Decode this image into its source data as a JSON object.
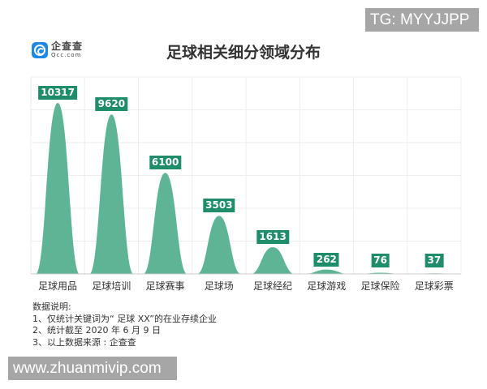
{
  "watermarks": {
    "top": "TG: MYYJJPP",
    "bottom": "www.zhuanmivip.com"
  },
  "logo": {
    "name_cn": "企查查",
    "name_en": "Qcc.com"
  },
  "header": {
    "title": "足球相关细分领域分布"
  },
  "colors": {
    "bump": "#5db595",
    "label_bg": "#1f8c6b",
    "grid": "#eeeeee",
    "baseline": "#cccccc"
  },
  "chart_data": {
    "type": "bar",
    "title": "足球相关细分领域分布",
    "xlabel": "",
    "ylabel": "",
    "categories": [
      "足球用品",
      "足球培训",
      "足球赛事",
      "足球场",
      "足球经纪",
      "足球游戏",
      "足球保险",
      "足球彩票"
    ],
    "values": [
      10317,
      9620,
      6100,
      3503,
      1613,
      262,
      76,
      37
    ],
    "ylim": [
      0,
      10500
    ],
    "grid": true,
    "legend": null,
    "style": "bell-shaped bars with data labels"
  },
  "notes": {
    "heading": "数据说明:",
    "lines": [
      "1、仅统计关键词为“ 足球 XX”的在业存续企业",
      "2、统计截至 2020 年 6 月 9 日",
      "3、以上数据来源 : 企查查"
    ]
  }
}
